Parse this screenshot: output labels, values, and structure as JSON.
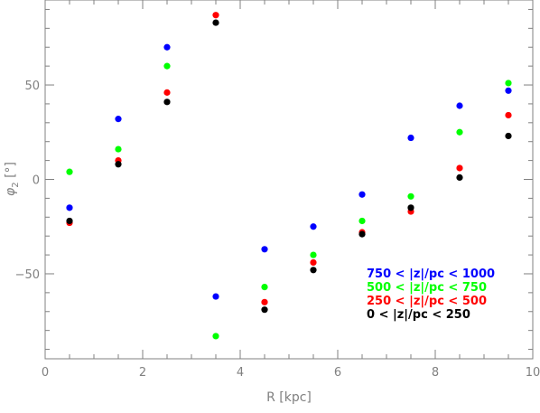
{
  "chart_data": {
    "type": "scatter",
    "xlabel": "R [kpc]",
    "ylabel": "φ",
    "ylabel_sub": "2",
    "ylabel_unit": " [°]",
    "xlim": [
      0,
      10
    ],
    "ylim": [
      -95,
      95
    ],
    "x_ticks": [
      0,
      2,
      4,
      6,
      8,
      10
    ],
    "y_ticks": [
      -50,
      0,
      50
    ],
    "x_tick_labels": [
      "0",
      "2",
      "4",
      "6",
      "8",
      "10"
    ],
    "y_tick_labels": [
      "−50",
      "0",
      "50"
    ],
    "grid": false,
    "legend_position": "bottom-right",
    "x": [
      0.5,
      1.5,
      2.5,
      3.5,
      4.5,
      5.5,
      6.5,
      7.5,
      8.5,
      9.5
    ],
    "series": [
      {
        "name": "750 < |z|/pc < 1000",
        "color": "#0000ff",
        "values": [
          -15,
          32,
          70,
          -62,
          -37,
          -25,
          -8,
          22,
          39,
          47
        ]
      },
      {
        "name": "500 < |z|/pc < 750",
        "color": "#00ff00",
        "values": [
          4,
          16,
          60,
          -83,
          -57,
          -40,
          -22,
          -9,
          25,
          51
        ]
      },
      {
        "name": "250 < |z|/pc < 500",
        "color": "#ff0000",
        "values": [
          -23,
          10,
          46,
          87,
          -65,
          -44,
          -28,
          -17,
          6,
          34
        ]
      },
      {
        "name": "0 < |z|/pc < 250",
        "color": "#000000",
        "values": [
          -22,
          8,
          41,
          83,
          -69,
          -48,
          -29,
          -15,
          1,
          23
        ]
      }
    ]
  }
}
